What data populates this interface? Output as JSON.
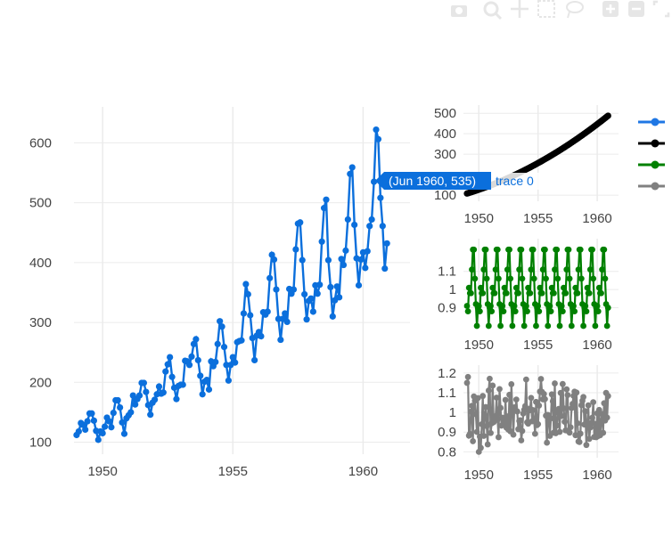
{
  "hover": {
    "label": "(Jun 1960, 535)",
    "trace": "trace 0"
  },
  "modebar": {
    "icons": [
      "camera-icon",
      "zoom-icon",
      "pan-icon",
      "box-select-icon",
      "lasso-icon",
      "zoom-in-icon",
      "zoom-out-icon",
      "autoscale-icon"
    ]
  },
  "legend": {
    "entries": [
      {
        "color": "#1f77e4"
      },
      {
        "color": "#000000"
      },
      {
        "color": "#008000"
      },
      {
        "color": "#808080"
      }
    ]
  },
  "chart_data": [
    {
      "type": "line",
      "panel": "main",
      "color": "#0b6fdc",
      "x_start": "1949-01",
      "frequency": "monthly",
      "values": [
        112,
        118,
        132,
        129,
        121,
        135,
        148,
        148,
        136,
        119,
        104,
        118,
        115,
        126,
        141,
        135,
        125,
        149,
        170,
        170,
        158,
        133,
        114,
        140,
        145,
        150,
        178,
        163,
        172,
        178,
        199,
        199,
        184,
        162,
        146,
        166,
        171,
        180,
        193,
        181,
        183,
        218,
        230,
        242,
        209,
        191,
        172,
        194,
        196,
        196,
        236,
        235,
        229,
        243,
        264,
        272,
        237,
        211,
        180,
        201,
        204,
        188,
        235,
        227,
        234,
        264,
        302,
        293,
        259,
        229,
        203,
        229,
        242,
        233,
        267,
        269,
        270,
        315,
        364,
        347,
        312,
        274,
        237,
        278,
        284,
        277,
        317,
        313,
        318,
        374,
        413,
        405,
        355,
        306,
        271,
        306,
        315,
        301,
        356,
        348,
        355,
        422,
        465,
        467,
        404,
        347,
        305,
        336,
        340,
        318,
        362,
        348,
        363,
        435,
        491,
        505,
        404,
        359,
        310,
        337,
        360,
        342,
        406,
        396,
        420,
        472,
        548,
        559,
        463,
        407,
        362,
        405,
        417,
        391,
        419,
        461,
        472,
        535,
        622,
        606,
        508,
        461,
        390,
        432
      ],
      "xticks": [
        "1950",
        "1955",
        "1960"
      ],
      "yticks": [
        "100",
        "200",
        "300",
        "400",
        "500",
        "600"
      ],
      "xlim": [
        1948.9,
        1961.8
      ],
      "ylim": [
        80,
        660
      ],
      "grid": true
    },
    {
      "type": "line",
      "panel": "trend",
      "color": "#000000",
      "x_start": "1949-01",
      "frequency": "monthly",
      "trend_start": 108,
      "trend_end": 488,
      "xticks": [
        "1950",
        "1955",
        "1960"
      ],
      "yticks": [
        "100",
        "300",
        "400",
        "500"
      ],
      "xlim": [
        1948.7,
        1961.8
      ],
      "ylim": [
        70,
        540
      ],
      "grid": true
    },
    {
      "type": "line",
      "panel": "seasonal",
      "color": "#008000",
      "x_start": "1949-01",
      "frequency": "monthly",
      "seasonal_factors": [
        0.91,
        0.88,
        1.01,
        0.98,
        0.98,
        1.11,
        1.22,
        1.22,
        1.06,
        0.92,
        0.8,
        0.9
      ],
      "xticks": [
        "1950",
        "1955",
        "1960"
      ],
      "yticks": [
        "0.9",
        "1",
        "1.1"
      ],
      "xlim": [
        1948.7,
        1961.8
      ],
      "ylim": [
        0.79,
        1.28
      ],
      "grid": true
    },
    {
      "type": "line",
      "panel": "residual",
      "color": "#808080",
      "x_start": "1949-01",
      "frequency": "monthly",
      "xticks": [
        "1950",
        "1955",
        "1960"
      ],
      "yticks": [
        "0.8",
        "0.9",
        "1",
        "1.1",
        "1.2"
      ],
      "xlim": [
        1948.7,
        1961.8
      ],
      "ylim": [
        0.77,
        1.24
      ],
      "grid": true
    }
  ]
}
